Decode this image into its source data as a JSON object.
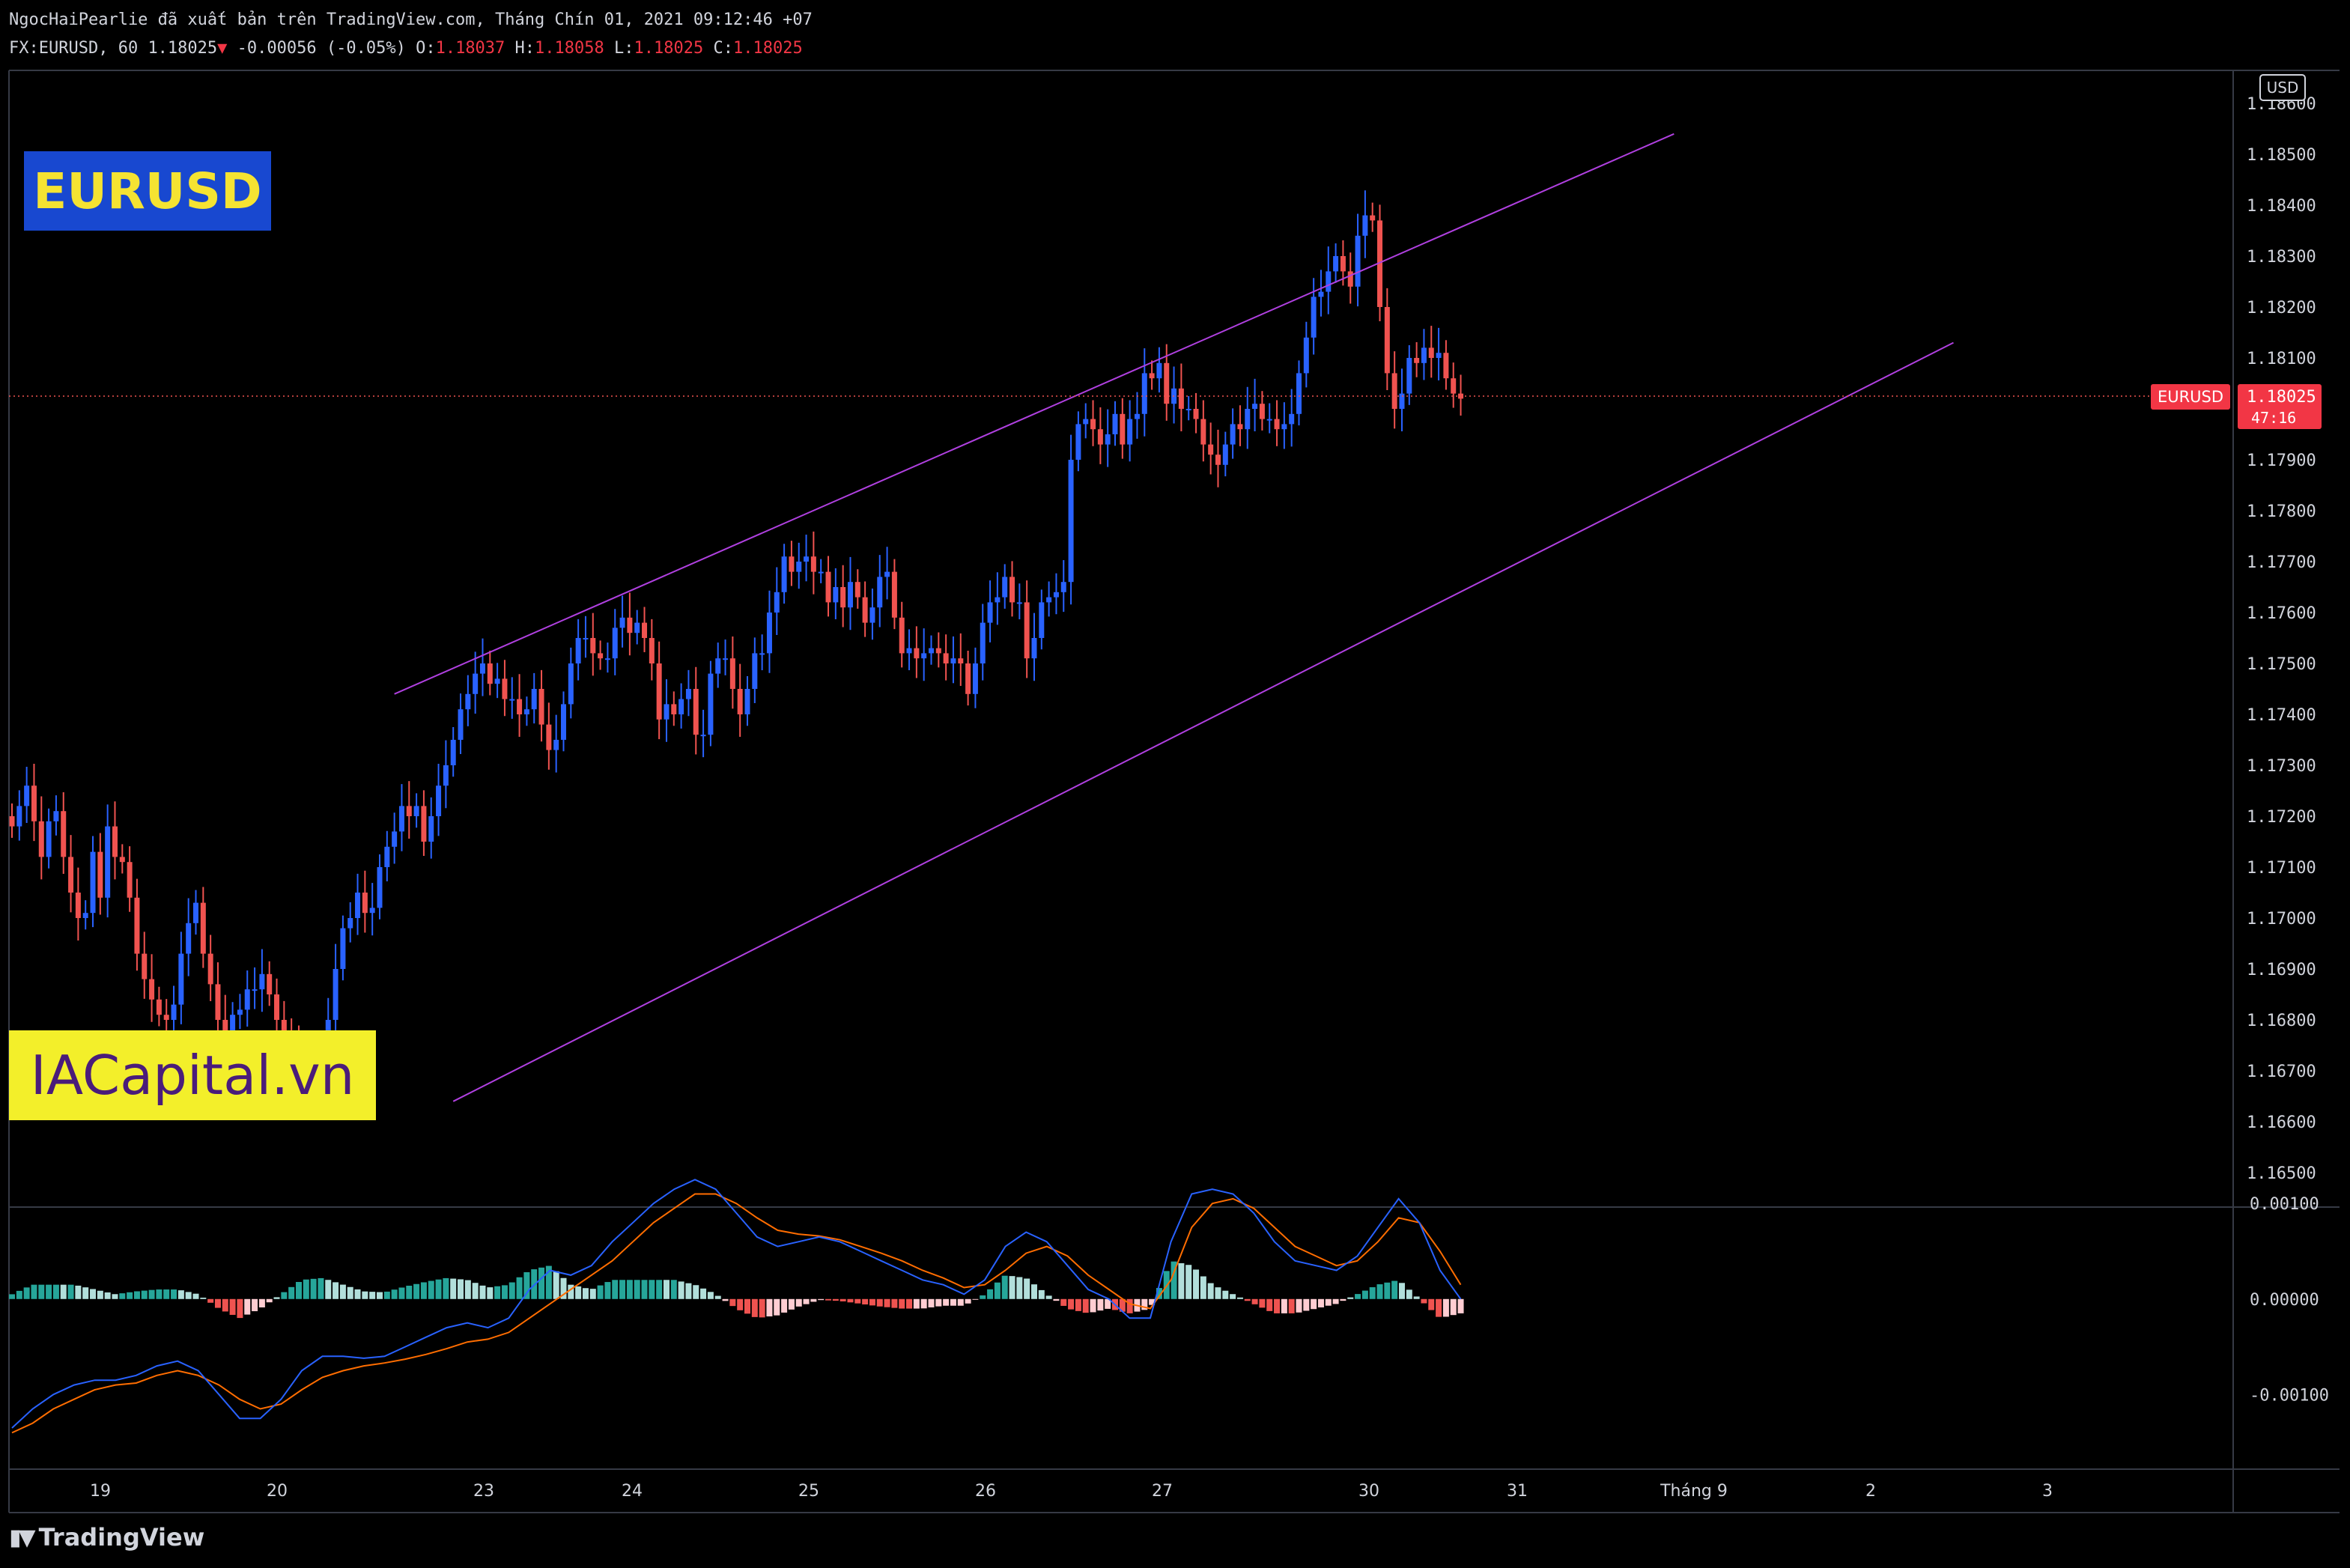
{
  "header": {
    "line1": "NgocHaiPearlie đã xuất bản trên TradingView.com, Tháng Chín 01, 2021 09:12:46 +07",
    "symbol": "FX:EURUSD, 60",
    "price": "1.18025",
    "change": "-0.00056 (-0.05%)",
    "o_label": "O:",
    "o": "1.18037",
    "h_label": "H:",
    "h": "1.18058",
    "l_label": "L:",
    "l": "1.18025",
    "c_label": "C:",
    "c": "1.18025"
  },
  "overlays": {
    "symbol_badge": "EURUSD",
    "brand_badge": "IACapital.vn"
  },
  "price_scale": {
    "currency": "USD",
    "last_label": "EURUSD",
    "last_price": "1.18025",
    "countdown": "47:16"
  },
  "footer": {
    "logo": "TradingView"
  },
  "colors": {
    "up": "#2962ff",
    "down": "#f05350",
    "channel": "#b040e0",
    "macd": "#2962ff",
    "signal": "#ff6d00",
    "hist_up_strong": "#26a69a",
    "hist_up_weak": "#b2dfdb",
    "hist_down_strong": "#ef5350",
    "hist_down_weak": "#ffcdd2"
  },
  "chart_data": {
    "type": "candlestick",
    "price_ticks": [
      "1.18600",
      "1.18500",
      "1.18400",
      "1.18300",
      "1.18200",
      "1.18100",
      "1.17900",
      "1.17800",
      "1.17700",
      "1.17600",
      "1.17500",
      "1.17400",
      "1.17300",
      "1.17200",
      "1.17100",
      "1.17000",
      "1.16900",
      "1.16800",
      "1.16700",
      "1.16600",
      "1.16500"
    ],
    "ylim": [
      1.1645,
      1.1865
    ],
    "x_labels": [
      "19",
      "20",
      "23",
      "24",
      "25",
      "26",
      "27",
      "30",
      "31",
      "Tháng 9",
      "2",
      "3"
    ],
    "macd_ticks": [
      "0.00100",
      "0.00000",
      "-0.00100"
    ],
    "macd_ylim": [
      -0.00175,
      0.0009
    ],
    "channel": {
      "upper": [
        [
          52,
          1.1744
        ],
        [
          226,
          1.1854
        ]
      ],
      "lower": [
        [
          60,
          1.1664
        ],
        [
          264,
          1.1813
        ]
      ]
    },
    "closes": [
      1.1718,
      1.1722,
      1.1726,
      1.1719,
      1.1712,
      1.1719,
      1.1721,
      1.1712,
      1.1705,
      1.17,
      1.1701,
      1.1713,
      1.1704,
      1.1718,
      1.1712,
      1.1711,
      1.1704,
      1.1693,
      1.1688,
      1.1684,
      1.1681,
      1.168,
      1.1683,
      1.1693,
      1.1699,
      1.1703,
      1.1693,
      1.1687,
      1.168,
      1.1675,
      1.1681,
      1.1682,
      1.1686,
      1.1686,
      1.1689,
      1.1685,
      1.168,
      1.1676,
      1.1674,
      1.1671,
      1.1669,
      1.1666,
      1.167,
      1.168,
      1.169,
      1.1698,
      1.17,
      1.1705,
      1.1701,
      1.1702,
      1.171,
      1.1714,
      1.1717,
      1.1722,
      1.172,
      1.1722,
      1.1715,
      1.172,
      1.1726,
      1.173,
      1.1735,
      1.1741,
      1.1744,
      1.1748,
      1.175,
      1.1746,
      1.1747,
      1.1743,
      1.1743,
      1.174,
      1.1741,
      1.1745,
      1.1738,
      1.1733,
      1.1735,
      1.1742,
      1.175,
      1.1755,
      1.1755,
      1.1752,
      1.1751,
      1.1751,
      1.1757,
      1.1759,
      1.1756,
      1.1758,
      1.1755,
      1.175,
      1.1739,
      1.1742,
      1.174,
      1.1743,
      1.1745,
      1.1736,
      1.1736,
      1.1748,
      1.1751,
      1.1751,
      1.1745,
      1.174,
      1.1745,
      1.1752,
      1.1752,
      1.176,
      1.1764,
      1.1771,
      1.1768,
      1.177,
      1.1771,
      1.1768,
      1.1768,
      1.1762,
      1.1765,
      1.1761,
      1.1766,
      1.1763,
      1.1758,
      1.1761,
      1.1767,
      1.1768,
      1.1759,
      1.1752,
      1.1753,
      1.1751,
      1.1752,
      1.1753,
      1.1752,
      1.175,
      1.1751,
      1.175,
      1.1744,
      1.175,
      1.1758,
      1.1762,
      1.1763,
      1.1767,
      1.1762,
      1.1762,
      1.1751,
      1.1755,
      1.1762,
      1.1763,
      1.1764,
      1.1766,
      1.179,
      1.1797,
      1.1798,
      1.1796,
      1.1793,
      1.1795,
      1.1799,
      1.1793,
      1.1798,
      1.1799,
      1.1807,
      1.1806,
      1.1809,
      1.1801,
      1.1804,
      1.18,
      1.18,
      1.1798,
      1.1793,
      1.1791,
      1.1789,
      1.1793,
      1.1797,
      1.1796,
      1.18,
      1.1801,
      1.1798,
      1.1798,
      1.1796,
      1.1797,
      1.1799,
      1.1807,
      1.1814,
      1.1822,
      1.1823,
      1.1827,
      1.183,
      1.1827,
      1.1824,
      1.1834,
      1.1838,
      1.1837,
      1.182,
      1.1807,
      1.18,
      1.1803,
      1.181,
      1.1809,
      1.1812,
      1.181,
      1.1811,
      1.1806,
      1.1803,
      1.1802
    ],
    "macd": [
      -0.00135,
      -0.00115,
      -0.001,
      -0.0009,
      -0.00085,
      -0.00085,
      -0.0008,
      -0.0007,
      -0.00065,
      -0.00075,
      -0.001,
      -0.00125,
      -0.00125,
      -0.00105,
      -0.00075,
      -0.0006,
      -0.0006,
      -0.00062,
      -0.0006,
      -0.0005,
      -0.0004,
      -0.0003,
      -0.00025,
      -0.0003,
      -0.0002,
      0.0001,
      0.0003,
      0.00025,
      0.00035,
      0.0006,
      0.0008,
      0.001,
      0.00115,
      0.00125,
      0.00115,
      0.0009,
      0.00065,
      0.00055,
      0.0006,
      0.00065,
      0.0006,
      0.0005,
      0.0004,
      0.0003,
      0.0002,
      0.00015,
      5e-05,
      0.0002,
      0.00055,
      0.0007,
      0.0006,
      0.00035,
      0.0001,
      0.0,
      -0.0002,
      -0.0002,
      0.0006,
      0.0011,
      0.00115,
      0.0011,
      0.0009,
      0.0006,
      0.0004,
      0.00035,
      0.0003,
      0.00045,
      0.00075,
      0.00105,
      0.0008,
      0.0003,
      0.0
    ],
    "signal": [
      -0.0014,
      -0.0013,
      -0.00115,
      -0.00105,
      -0.00095,
      -0.0009,
      -0.00088,
      -0.0008,
      -0.00075,
      -0.0008,
      -0.0009,
      -0.00105,
      -0.00115,
      -0.0011,
      -0.00095,
      -0.00082,
      -0.00075,
      -0.0007,
      -0.00067,
      -0.00063,
      -0.00058,
      -0.00052,
      -0.00045,
      -0.00042,
      -0.00035,
      -0.0002,
      -5e-05,
      0.0001,
      0.00025,
      0.0004,
      0.0006,
      0.0008,
      0.00095,
      0.0011,
      0.0011,
      0.001,
      0.00085,
      0.00072,
      0.00068,
      0.00066,
      0.00062,
      0.00055,
      0.00048,
      0.0004,
      0.0003,
      0.00022,
      0.00012,
      0.00015,
      0.0003,
      0.00048,
      0.00055,
      0.00045,
      0.00025,
      0.0001,
      -5e-05,
      -0.0001,
      0.0002,
      0.00075,
      0.001,
      0.00105,
      0.00095,
      0.00075,
      0.00055,
      0.00045,
      0.00035,
      0.0004,
      0.0006,
      0.00085,
      0.0008,
      0.0005,
      0.00015
    ]
  }
}
